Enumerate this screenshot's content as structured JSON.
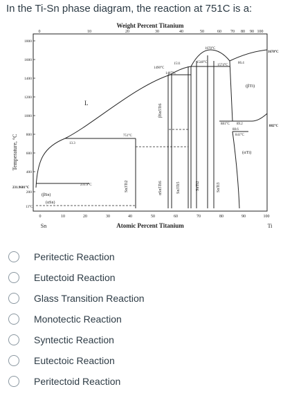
{
  "question": {
    "text": "In the Ti-Sn phase diagram, the reaction at 751C is a:"
  },
  "diagram": {
    "top_axis_title": "Weight Percent Titanium",
    "bottom_axis_title": "Atomic Percent Titanium",
    "y_axis_title": "Temperature, °C",
    "top_ticks": [
      "0",
      "10",
      "20",
      "30",
      "40",
      "50",
      "60",
      "70",
      "80",
      "90",
      "100"
    ],
    "bottom_ticks": [
      "0",
      "10",
      "20",
      "30",
      "40",
      "50",
      "60",
      "70",
      "80",
      "90",
      "100"
    ],
    "y_ticks": [
      "1800",
      "1600",
      "1400",
      "1200",
      "1000",
      "800",
      "600",
      "400",
      "200"
    ],
    "element_left": "Sn",
    "element_right": "Ti",
    "labels": {
      "liquid": "L",
      "beta_ti": "(βTi)",
      "alpha_ti": "(αTi)",
      "beta_sn": "(βSn)",
      "alpha_sn": "(αSn)",
      "sn3ti2": "Sn3Ti2",
      "beta_sn5ti6": "βSn5Ti6",
      "alpha_sn5ti6": "αSn5Ti6",
      "sn3ti5": "Sn3Ti5",
      "snti2": "SnTi2",
      "snti3": "SnTi3"
    },
    "annotations": {
      "t1670": "1670°C",
      "t1548": "1548°C",
      "t1574": "1574°C",
      "c864": "86.4",
      "t1511": "1511",
      "t1490": "1490°C",
      "t1487": "1487°C",
      "t751": "751°C",
      "t881": "881°C",
      "c892": "89.2",
      "c886": "88.6",
      "t841": "841°C",
      "c133": "13.3",
      "t2319": "231.9°C",
      "t13": "13°C",
      "t2319681": "231.9681°C",
      "right1670": "1670°C",
      "right882": "882°C"
    }
  },
  "options": [
    {
      "label": "Peritectic Reaction"
    },
    {
      "label": "Eutectoid Reaction"
    },
    {
      "label": "Glass Transition Reaction"
    },
    {
      "label": "Monotectic Reaction"
    },
    {
      "label": "Syntectic Reaction"
    },
    {
      "label": "Eutectoic Reaction"
    },
    {
      "label": "Peritectoid Reaction"
    }
  ]
}
